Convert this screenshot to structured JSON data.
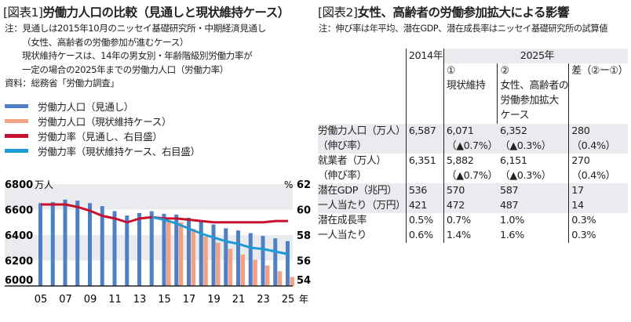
{
  "left": {
    "title_prefix": "[図表1]",
    "title": "労働力人口の比較（見通しと現状維持ケース）",
    "notes": [
      "注：見通しは2015年10月のニッセイ基礎研究所・中期経済見通し",
      "（女性、高齢者の労働参加が進むケース）",
      "現状維持ケースは、14年の男女別・年齢階級別労働力率が",
      "一定の場合の2025年までの労働力人口（労働力率）",
      "資料：総務省「労働力調査」"
    ]
  },
  "chart_data": {
    "type": "bar",
    "title": "労働力人口の比較（見通しと現状維持ケース）",
    "xlabel": "年",
    "ylabel": "万人",
    "y2label": "%",
    "ylim": [
      6000,
      6800
    ],
    "y2lim": [
      54,
      62
    ],
    "yticks": [
      "6000",
      "6200",
      "6400",
      "6600",
      "6800"
    ],
    "y2ticks": [
      "54",
      "56",
      "58",
      "60",
      "62"
    ],
    "grid": "alternating bands",
    "legend": "top",
    "categories": [
      "05",
      "06",
      "07",
      "08",
      "09",
      "10",
      "11",
      "12",
      "13",
      "14",
      "15",
      "16",
      "17",
      "18",
      "19",
      "20",
      "21",
      "22",
      "23",
      "24",
      "25"
    ],
    "xticks": [
      "05",
      "07",
      "09",
      "11",
      "13",
      "15",
      "17",
      "19",
      "21",
      "23",
      "25"
    ],
    "series": [
      {
        "name": "労働力人口（見通し）",
        "type": "bar",
        "axis": "left",
        "color": "#4f7fc4",
        "values": [
          6651,
          6659,
          6678,
          6670,
          6651,
          6627,
          6588,
          6553,
          6573,
          6587,
          6567,
          6561,
          6536,
          6514,
          6483,
          6453,
          6436,
          6415,
          6393,
          6374,
          6352
        ]
      },
      {
        "name": "労働力人口（現状維持ケース）",
        "type": "bar",
        "axis": "left",
        "color": "#f0a284",
        "values": [
          null,
          null,
          null,
          null,
          null,
          null,
          null,
          null,
          null,
          null,
          6514,
          6500,
          6448,
          6387,
          6340,
          6292,
          6247,
          6206,
          6161,
          6116,
          6071
        ]
      },
      {
        "name": "労働力率（見通し、右目盛）",
        "type": "line",
        "axis": "right",
        "color": "#c8102e",
        "values": [
          60.4,
          60.4,
          60.4,
          60.2,
          59.9,
          59.5,
          59.3,
          59.0,
          59.3,
          59.4,
          59.3,
          59.3,
          59.2,
          59.1,
          59.0,
          59.0,
          59.0,
          59.0,
          59.0,
          59.1,
          59.1
        ]
      },
      {
        "name": "労働力率（現状維持ケース、右目盛）",
        "type": "line",
        "axis": "right",
        "color": "#1e9ad6",
        "values": [
          null,
          null,
          null,
          null,
          null,
          null,
          null,
          null,
          null,
          59.4,
          59.2,
          58.9,
          58.5,
          58.1,
          57.8,
          57.5,
          57.3,
          57.0,
          56.9,
          56.7,
          56.5
        ]
      }
    ]
  },
  "right": {
    "title_prefix": "[図表2]",
    "title": "女性、高齢者の労働参加拡大による影響",
    "note": "注：伸び率は年平均、潜在GDP、潜在成長率はニッセイ基礎研究所の試算値",
    "table": {
      "year_2014": "2014年",
      "year_2025": "2025年",
      "col1_num": "①",
      "col1": "現状維持",
      "col2_num": "②",
      "col2": [
        "女性、高齢者の",
        "労働参加拡大",
        "ケース"
      ],
      "col3": "差（②ー①）",
      "rows": [
        {
          "label": [
            "労働力人口（万人）",
            "（伸び率）"
          ],
          "v2014": "6,587",
          "c1": [
            "6,071",
            "（▲0.7%）"
          ],
          "c2": [
            "6,352",
            "（▲0.3%）"
          ],
          "diff": [
            "280",
            "（0.4%）"
          ]
        },
        {
          "label": [
            "就業者（万人）",
            "（伸び率）"
          ],
          "v2014": "6,351",
          "c1": [
            "5,882",
            "（▲0.7%）"
          ],
          "c2": [
            "6,151",
            "（▲0.3%）"
          ],
          "diff": [
            "270",
            "（0.4%）"
          ]
        },
        {
          "label": [
            "潜在GDP（兆円）",
            "一人当たり（万円）"
          ],
          "v2014": [
            "536",
            "421"
          ],
          "c1": [
            "570",
            "472"
          ],
          "c2": [
            "587",
            "487"
          ],
          "diff": [
            "17",
            "14"
          ]
        },
        {
          "label": [
            "潜在成長率",
            "一人当たり"
          ],
          "v2014": [
            "0.5%",
            "0.6%"
          ],
          "c1": [
            "0.7%",
            "1.4%"
          ],
          "c2": [
            "1.0%",
            "1.6%"
          ],
          "diff": [
            "0.3%",
            "0.3%"
          ]
        }
      ]
    }
  }
}
